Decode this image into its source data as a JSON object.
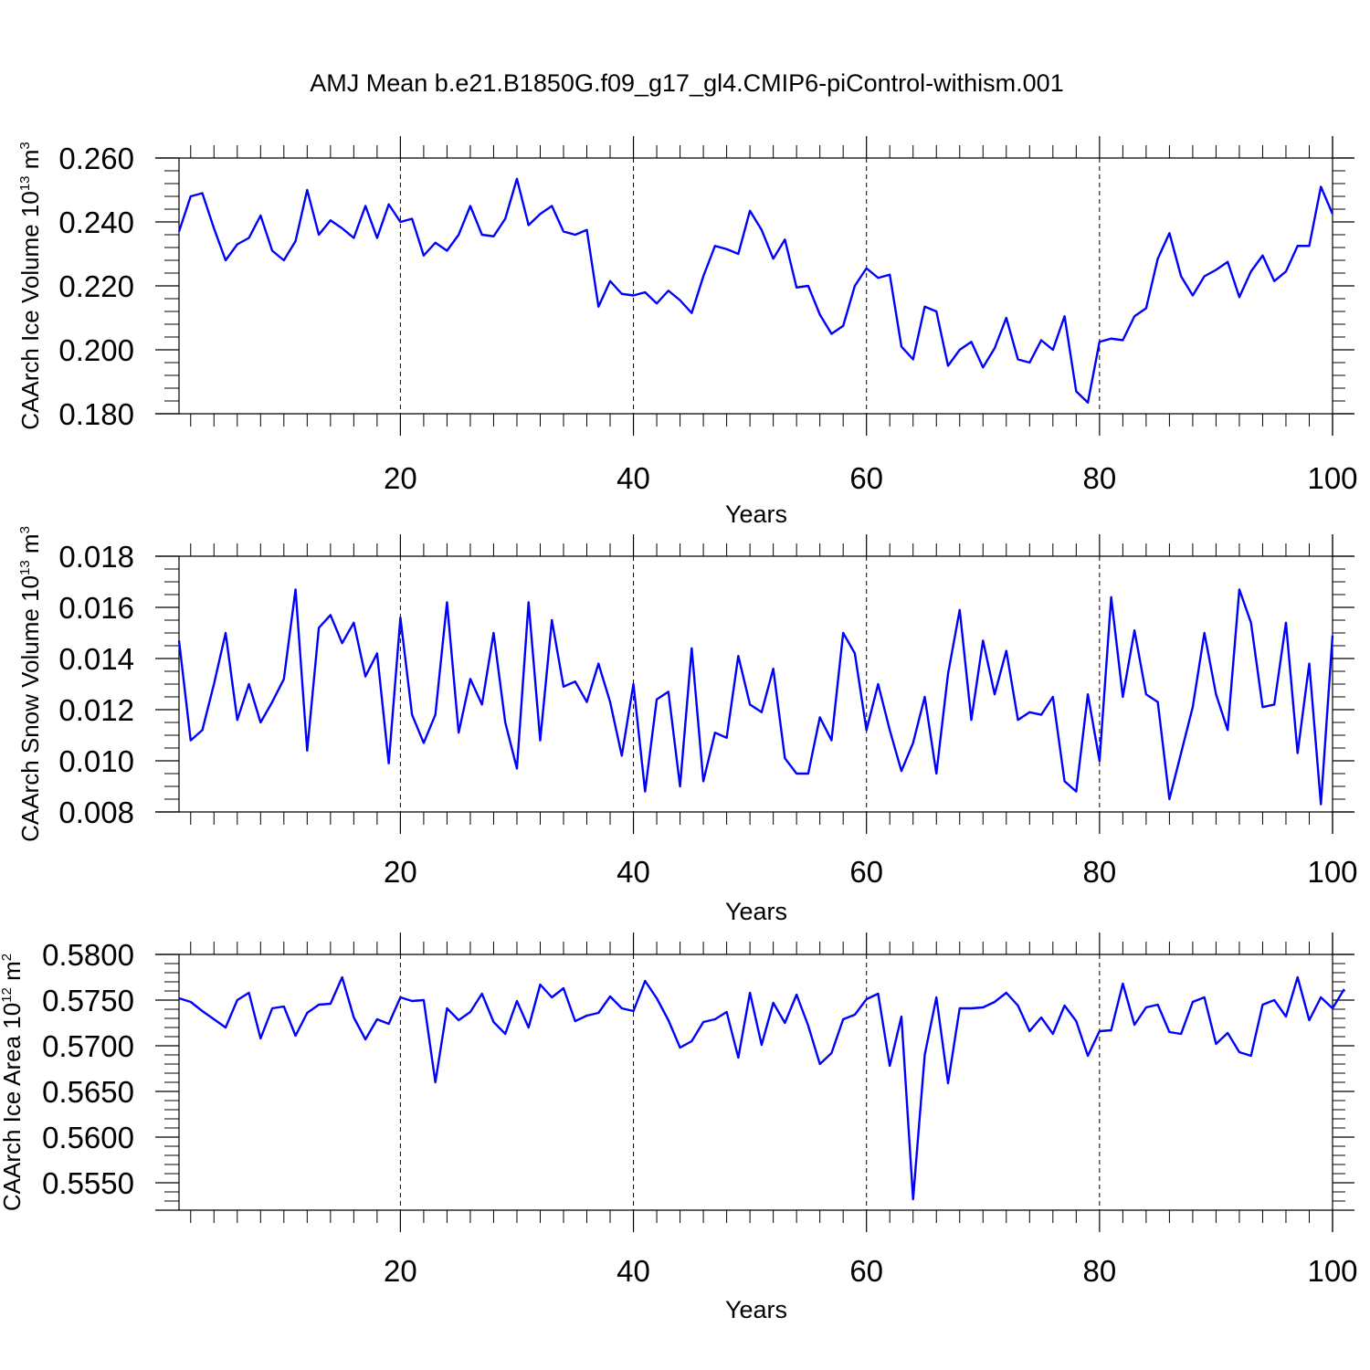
{
  "page": {
    "title": "AMJ Mean b.e21.B1850G.f09_g17_gl4.CMIP6-piControl-withism.001"
  },
  "chart_data": [
    {
      "type": "line",
      "title": "AMJ Mean b.e21.B1850G.f09_g17_gl4.CMIP6-piControl-withism.001",
      "xlabel": "Years",
      "ylabel": {
        "prefix": "CAArch Ice Volume 10",
        "exp": "13",
        "unit": " m",
        "unit_exp": "3"
      },
      "xlim": [
        1,
        100
      ],
      "ylim": [
        0.18,
        0.26
      ],
      "yticks": [
        "0.260",
        "0.240",
        "0.220",
        "0.200",
        "0.180"
      ],
      "ytick_values": [
        0.26,
        0.24,
        0.22,
        0.2,
        0.18
      ],
      "ytick_minor_step": 0.004,
      "xticks": [
        "20",
        "40",
        "60",
        "80",
        "100"
      ],
      "xtick_values": [
        20,
        40,
        60,
        80,
        100
      ],
      "xgrid": [
        20,
        40,
        60,
        80
      ],
      "line_color": "#0000ff",
      "series": [
        {
          "name": "CAArch Ice Volume",
          "x_start": 1,
          "values": [
            0.237,
            0.248,
            0.249,
            0.238,
            0.228,
            0.233,
            0.235,
            0.242,
            0.231,
            0.228,
            0.234,
            0.25,
            0.236,
            0.2405,
            0.238,
            0.235,
            0.245,
            0.235,
            0.2455,
            0.24,
            0.241,
            0.2295,
            0.2335,
            0.231,
            0.236,
            0.245,
            0.236,
            0.2355,
            0.241,
            0.2535,
            0.239,
            0.2425,
            0.245,
            0.237,
            0.236,
            0.2375,
            0.2135,
            0.2215,
            0.2175,
            0.217,
            0.218,
            0.2145,
            0.2185,
            0.2155,
            0.2115,
            0.223,
            0.2325,
            0.2315,
            0.23,
            0.2435,
            0.2375,
            0.2285,
            0.2345,
            0.2195,
            0.22,
            0.211,
            0.205,
            0.2075,
            0.22,
            0.2255,
            0.2225,
            0.2235,
            0.201,
            0.197,
            0.2135,
            0.212,
            0.195,
            0.2,
            0.2025,
            0.1945,
            0.2005,
            0.21,
            0.197,
            0.196,
            0.203,
            0.2,
            0.2105,
            0.187,
            0.1835,
            0.2025,
            0.2035,
            0.203,
            0.2105,
            0.213,
            0.2285,
            0.2365,
            0.223,
            0.217,
            0.223,
            0.225,
            0.2275,
            0.2165,
            0.2245,
            0.2295,
            0.2215,
            0.2245,
            0.2325,
            0.2325,
            0.251,
            0.2425
          ]
        }
      ]
    },
    {
      "type": "line",
      "xlabel": "Years",
      "ylabel": {
        "prefix": "CAArch Snow Volume 10",
        "exp": "13",
        "unit": " m",
        "unit_exp": "3"
      },
      "xlim": [
        1,
        100
      ],
      "ylim": [
        0.008,
        0.018
      ],
      "yticks": [
        "0.018",
        "0.016",
        "0.014",
        "0.012",
        "0.010",
        "0.008"
      ],
      "ytick_values": [
        0.018,
        0.016,
        0.014,
        0.012,
        0.01,
        0.008
      ],
      "ytick_minor_step": 0.0005,
      "xticks": [
        "20",
        "40",
        "60",
        "80",
        "100"
      ],
      "xtick_values": [
        20,
        40,
        60,
        80,
        100
      ],
      "xgrid": [
        20,
        40,
        60,
        80
      ],
      "line_color": "#0000ff",
      "series": [
        {
          "name": "CAArch Snow Volume",
          "x_start": 1,
          "values": [
            0.0147,
            0.0108,
            0.0112,
            0.013,
            0.015,
            0.0116,
            0.013,
            0.0115,
            0.0123,
            0.0132,
            0.0167,
            0.0104,
            0.0152,
            0.0157,
            0.0146,
            0.0154,
            0.0133,
            0.0142,
            0.0099,
            0.0156,
            0.0118,
            0.0107,
            0.0118,
            0.0162,
            0.0111,
            0.0132,
            0.0122,
            0.015,
            0.0115,
            0.0097,
            0.0162,
            0.0108,
            0.0155,
            0.0129,
            0.0131,
            0.0123,
            0.0138,
            0.0123,
            0.0102,
            0.013,
            0.0088,
            0.0124,
            0.0127,
            0.009,
            0.0144,
            0.0092,
            0.0111,
            0.0109,
            0.0141,
            0.0122,
            0.0119,
            0.0136,
            0.0101,
            0.0095,
            0.0095,
            0.0117,
            0.0108,
            0.015,
            0.0142,
            0.0112,
            0.013,
            0.0112,
            0.0096,
            0.0107,
            0.0125,
            0.0095,
            0.0134,
            0.0159,
            0.0116,
            0.0147,
            0.0126,
            0.0143,
            0.0116,
            0.0119,
            0.0118,
            0.0125,
            0.0092,
            0.0088,
            0.0126,
            0.01,
            0.0164,
            0.0125,
            0.0151,
            0.0126,
            0.0123,
            0.0085,
            0.0103,
            0.0121,
            0.015,
            0.0126,
            0.0112,
            0.0167,
            0.0154,
            0.0121,
            0.0122,
            0.0154,
            0.0103,
            0.0138,
            0.0083,
            0.0149
          ]
        }
      ]
    },
    {
      "type": "line",
      "xlabel": "Years",
      "ylabel": {
        "prefix": "CAArch Ice Area 10",
        "exp": "12",
        "unit": " m",
        "unit_exp": "2"
      },
      "xlim": [
        1,
        100
      ],
      "ylim": [
        0.552,
        0.58
      ],
      "yticks": [
        "0.5800",
        "0.5750",
        "0.5700",
        "0.5650",
        "0.5600",
        "0.5550"
      ],
      "ytick_values": [
        0.58,
        0.575,
        0.57,
        0.565,
        0.56,
        0.555
      ],
      "ytick_minor_step": 0.001,
      "xticks": [
        "20",
        "40",
        "60",
        "80",
        "100"
      ],
      "xtick_values": [
        20,
        40,
        60,
        80,
        100
      ],
      "xgrid": [
        20,
        40,
        60,
        80
      ],
      "line_color": "#0000ff",
      "series": [
        {
          "name": "CAArch Ice Area",
          "x_start": 1,
          "values": [
            0.5752,
            0.5748,
            0.5738,
            0.5729,
            0.572,
            0.575,
            0.5758,
            0.5708,
            0.5741,
            0.5743,
            0.5711,
            0.5736,
            0.5745,
            0.5746,
            0.5775,
            0.5731,
            0.5707,
            0.5729,
            0.5724,
            0.5753,
            0.5749,
            0.575,
            0.566,
            0.5741,
            0.5728,
            0.5737,
            0.5757,
            0.5726,
            0.5713,
            0.5749,
            0.572,
            0.5767,
            0.5753,
            0.5763,
            0.5727,
            0.5733,
            0.5736,
            0.5754,
            0.5741,
            0.5738,
            0.5771,
            0.5752,
            0.5728,
            0.5698,
            0.5705,
            0.5726,
            0.5729,
            0.5737,
            0.5687,
            0.5758,
            0.5701,
            0.5747,
            0.5725,
            0.5756,
            0.5722,
            0.568,
            0.5692,
            0.5729,
            0.5734,
            0.5751,
            0.5757,
            0.5678,
            0.5732,
            0.5532,
            0.569,
            0.5753,
            0.5659,
            0.5741,
            0.5741,
            0.5742,
            0.5748,
            0.5758,
            0.5744,
            0.5716,
            0.5731,
            0.5713,
            0.5744,
            0.5727,
            0.5689,
            0.5716,
            0.5717,
            0.5768,
            0.5723,
            0.5742,
            0.5745,
            0.5715,
            0.5713,
            0.5748,
            0.5753,
            0.5702,
            0.5714,
            0.5693,
            0.5689,
            0.5745,
            0.575,
            0.5732,
            0.5775,
            0.5728,
            0.5753,
            0.5741,
            0.5762
          ]
        }
      ]
    }
  ]
}
